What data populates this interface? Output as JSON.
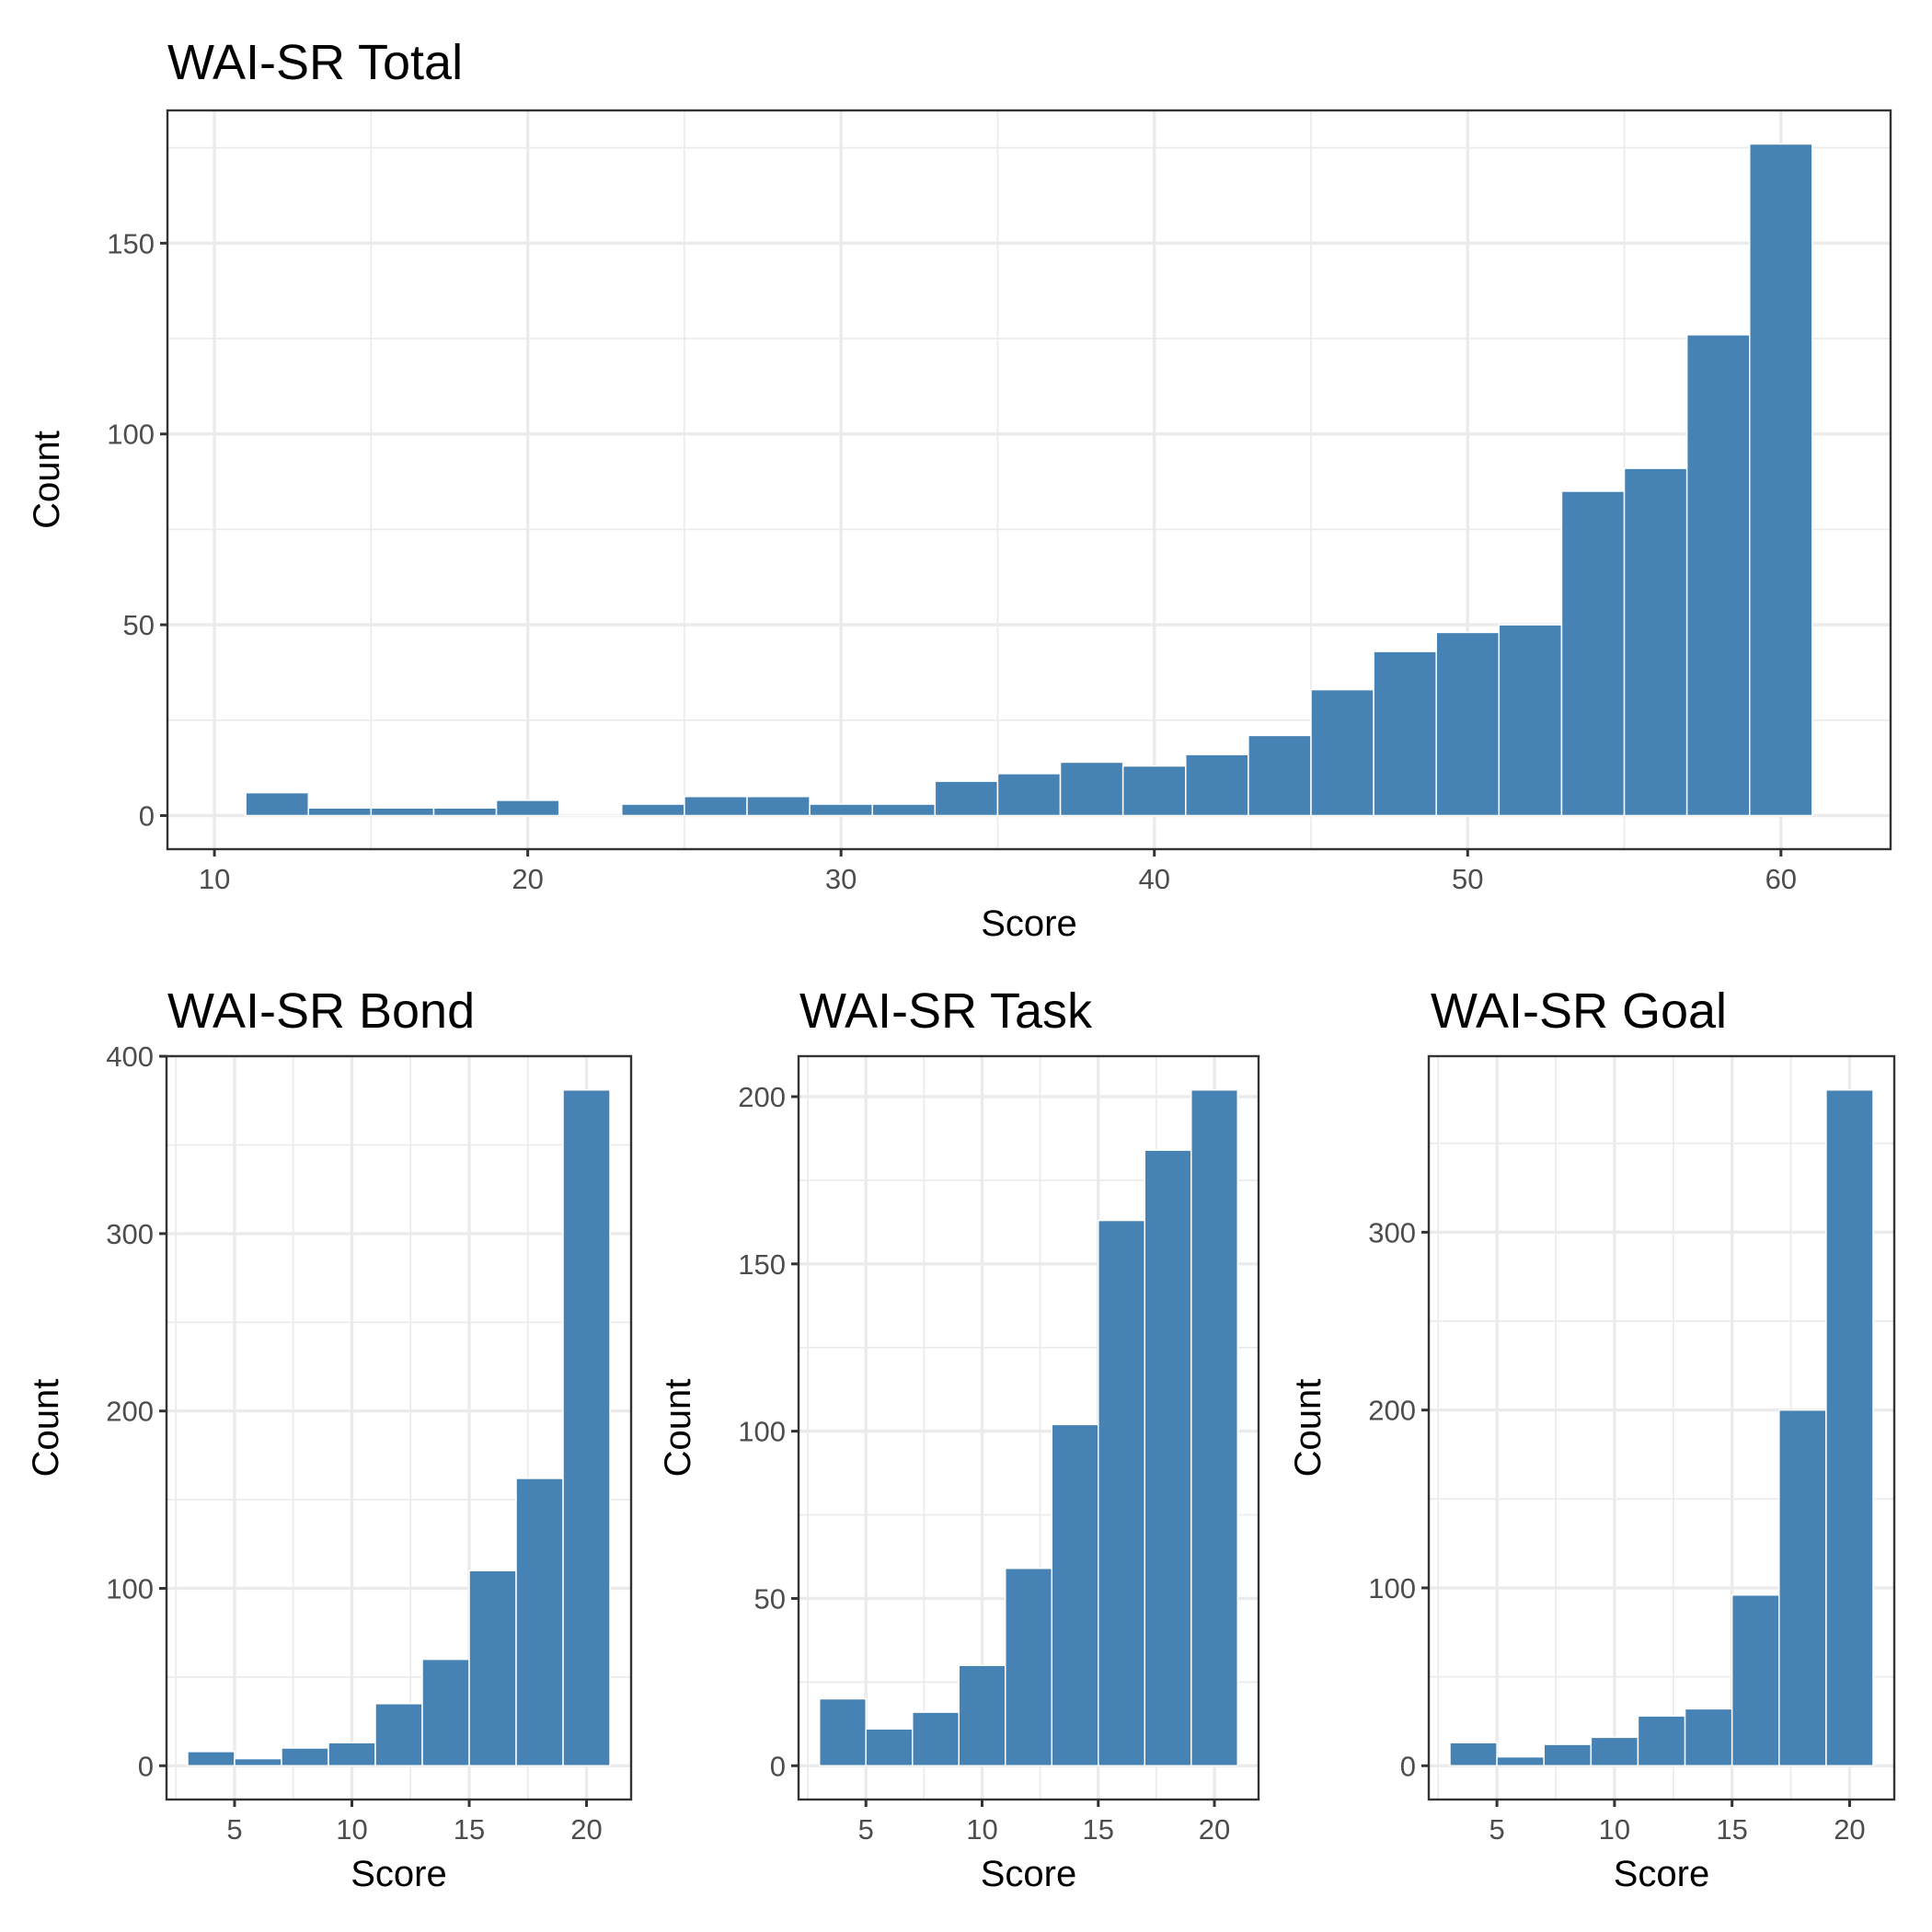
{
  "figure": {
    "bar_color": "#4682b4",
    "background": "#ffffff"
  },
  "chart_data": [
    {
      "id": "total",
      "type": "bar",
      "subtype": "histogram",
      "title": "WAI-SR Total",
      "xlabel": "Score",
      "ylabel": "Count",
      "bin_width": 2,
      "x": [
        12,
        14,
        16,
        18,
        20,
        22,
        24,
        26,
        28,
        30,
        32,
        34,
        36,
        38,
        40,
        42,
        44,
        46,
        48,
        50,
        52,
        54,
        56,
        58,
        60
      ],
      "values": [
        6,
        2,
        2,
        2,
        4,
        0,
        3,
        5,
        5,
        3,
        3,
        9,
        11,
        14,
        13,
        16,
        21,
        33,
        43,
        48,
        50,
        85,
        91,
        126,
        176
      ],
      "xlim": [
        8.5,
        63.5
      ],
      "ylim": [
        -8.8,
        184.8
      ],
      "xticks": [
        10,
        20,
        30,
        40,
        50,
        60
      ],
      "xticks_minor": [
        15,
        25,
        35,
        45,
        55
      ],
      "yticks": [
        0,
        50,
        100,
        150
      ],
      "yticks_minor": [
        25,
        75,
        125,
        175
      ],
      "grid": true
    },
    {
      "id": "bond",
      "type": "bar",
      "subtype": "histogram",
      "title": "WAI-SR Bond",
      "xlabel": "Score",
      "ylabel": "Count",
      "bin_width": 2,
      "x": [
        4,
        6,
        8,
        10,
        12,
        14,
        16,
        18,
        20
      ],
      "values": [
        8,
        4,
        10,
        13,
        35,
        60,
        110,
        162,
        381
      ],
      "xlim": [
        2.1,
        21.9
      ],
      "ylim": [
        -19.05,
        400.05
      ],
      "xticks": [
        5,
        10,
        15,
        20
      ],
      "xticks_minor": [
        2.5,
        7.5,
        12.5,
        17.5
      ],
      "yticks": [
        0,
        100,
        200,
        300,
        400
      ],
      "yticks_minor": [
        50,
        150,
        250,
        350
      ],
      "grid": true
    },
    {
      "id": "task",
      "type": "bar",
      "subtype": "histogram",
      "title": "WAI-SR Task",
      "xlabel": "Score",
      "ylabel": "Count",
      "bin_width": 2,
      "x": [
        4,
        6,
        8,
        10,
        12,
        14,
        16,
        18,
        20
      ],
      "values": [
        20,
        11,
        16,
        30,
        59,
        102,
        163,
        184,
        202
      ],
      "xlim": [
        2.1,
        21.9
      ],
      "ylim": [
        -10.1,
        212.1
      ],
      "xticks": [
        5,
        10,
        15,
        20
      ],
      "xticks_minor": [
        2.5,
        7.5,
        12.5,
        17.5
      ],
      "yticks": [
        0,
        50,
        100,
        150,
        200
      ],
      "yticks_minor": [
        25,
        75,
        125,
        175
      ],
      "grid": true
    },
    {
      "id": "goal",
      "type": "bar",
      "subtype": "histogram",
      "title": "WAI-SR Goal",
      "xlabel": "Score",
      "ylabel": "Count",
      "bin_width": 2,
      "x": [
        4,
        6,
        8,
        10,
        12,
        14,
        16,
        18,
        20
      ],
      "values": [
        13,
        5,
        12,
        16,
        28,
        32,
        96,
        200,
        380
      ],
      "xlim": [
        2.1,
        21.9
      ],
      "ylim": [
        -19,
        399
      ],
      "xticks": [
        5,
        10,
        15,
        20
      ],
      "xticks_minor": [
        2.5,
        7.5,
        12.5,
        17.5
      ],
      "yticks": [
        0,
        100,
        200,
        300
      ],
      "yticks_minor": [
        50,
        150,
        250,
        350
      ],
      "grid": true
    }
  ]
}
